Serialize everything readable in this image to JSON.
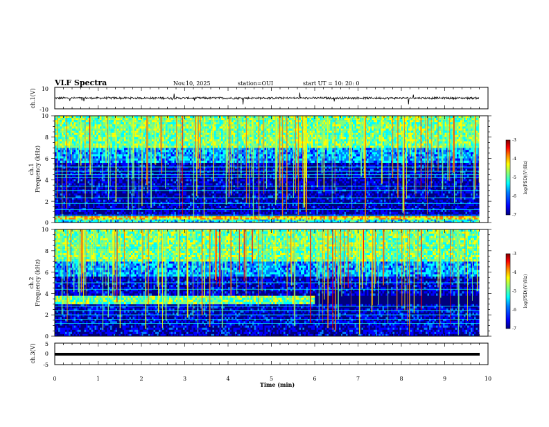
{
  "header": {
    "title": "VLF Spectra",
    "date": "Nov.10, 2025",
    "station": "station=OUI",
    "start": "start  UT =   10: 20: 0"
  },
  "colors": {
    "background": "#ffffff",
    "axes": "#000000",
    "colormap": [
      "#00007f",
      "#0000ff",
      "#007fff",
      "#00ffff",
      "#7fff7f",
      "#ffff00",
      "#ff7f00",
      "#ff0000",
      "#7f0000"
    ]
  },
  "chart_data": [
    {
      "type": "line",
      "name": "ch1-waveform",
      "ylabel": "ch.1(V)",
      "ylim": [
        -10,
        10
      ],
      "yticks": [
        "10",
        "-10"
      ],
      "xlim": [
        0,
        10
      ],
      "description_values": {
        "baseline": 0,
        "typical_amplitude": 1,
        "max_spike": 6,
        "data_end_min": 9.8
      }
    },
    {
      "type": "heatmap",
      "name": "ch1-spectrogram",
      "ylabel": "ch.1\nFrequency (kHz)",
      "ylabel_top": "ch.1",
      "ylabel_bottom": "Frequency  (kHz)",
      "ylim": [
        0,
        10
      ],
      "yticks": [
        "0",
        "2",
        "4",
        "6",
        "8",
        "10"
      ],
      "xlim": [
        0,
        10
      ],
      "data_end_min": 9.8,
      "bands_khz": [
        {
          "range": [
            0,
            0.3
          ],
          "level": 0.45
        },
        {
          "range": [
            0.3,
            0.6
          ],
          "level": 0.7
        },
        {
          "range": [
            0.6,
            5.6
          ],
          "level": 0.12
        },
        {
          "range": [
            5.6,
            7.0
          ],
          "level": 0.35
        },
        {
          "range": [
            7.0,
            10
          ],
          "level": 0.55
        }
      ],
      "lines_khz": [
        0.7,
        1.2,
        1.8,
        2.3,
        3.0,
        3.4,
        4.2,
        4.5,
        4.8,
        5.2
      ],
      "colorbar": {
        "label": "log(PSD)(V²/Hz)",
        "range": [
          -7,
          -3
        ],
        "ticks": [
          "-3",
          "-4",
          "-5",
          "-6",
          "-7"
        ]
      }
    },
    {
      "type": "heatmap",
      "name": "ch2-spectrogram",
      "ylabel": "ch.2\nFrequency (kHz)",
      "ylabel_top": "ch.2",
      "ylabel_bottom": "Frequency  (kHz)",
      "ylim": [
        0,
        10
      ],
      "yticks": [
        "0",
        "2",
        "4",
        "6",
        "8",
        "10"
      ],
      "xlim": [
        0,
        10
      ],
      "data_end_min": 9.8,
      "bands_khz": [
        {
          "range": [
            0,
            3.0
          ],
          "level": 0.14
        },
        {
          "range": [
            3.0,
            3.8
          ],
          "level": 0.55,
          "until_min": 6.0
        },
        {
          "range": [
            3.8,
            5.6
          ],
          "level": 0.14
        },
        {
          "range": [
            5.6,
            7.0
          ],
          "level": 0.35
        },
        {
          "range": [
            7.0,
            10
          ],
          "level": 0.55
        }
      ],
      "lines_khz": [
        1.2,
        1.6,
        2.0,
        2.4,
        2.8,
        4.4,
        5.0
      ],
      "colorbar": {
        "label": "log(PSD)(V²/Hz)",
        "range": [
          -7,
          -3
        ],
        "ticks": [
          "-3",
          "-4",
          "-5",
          "-6",
          "-7"
        ]
      }
    },
    {
      "type": "line",
      "name": "ch3-waveform",
      "ylabel": "ch.3(V)",
      "ylim": [
        -5,
        5
      ],
      "yticks": [
        "5",
        "0",
        "-5"
      ],
      "xlim": [
        0,
        10
      ],
      "description_values": {
        "constant_value": -0.5,
        "data_end_min": 9.8
      }
    }
  ],
  "xaxis": {
    "label": "Time  (min)",
    "ticks": [
      "0",
      "1",
      "2",
      "3",
      "4",
      "5",
      "6",
      "7",
      "8",
      "9",
      "10"
    ]
  }
}
